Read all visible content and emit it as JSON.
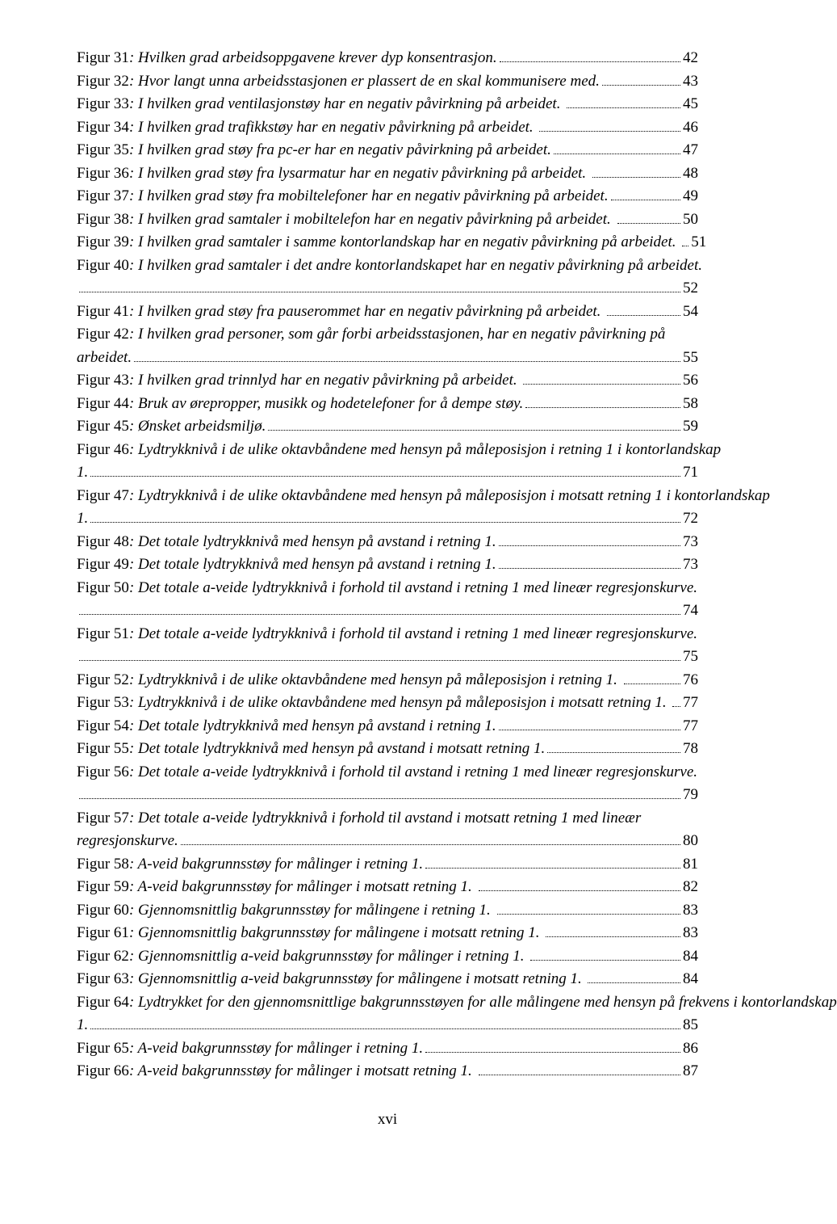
{
  "footer": "xvi",
  "entries": [
    {
      "prefix": "Figur 31",
      "title": ": Hvilken grad arbeidsoppgavene krever dyp konsentrasjon.",
      "page": "42",
      "wrap": false,
      "orphan": false
    },
    {
      "prefix": "Figur 32",
      "title": ": Hvor langt unna arbeidsstasjonen er plassert de en skal kommunisere med.",
      "page": "43",
      "wrap": false,
      "orphan": false
    },
    {
      "prefix": "Figur 33",
      "title": ": I hvilken grad ventilasjonstøy har en negativ påvirkning på arbeidet. ",
      "page": "45",
      "wrap": false,
      "orphan": false
    },
    {
      "prefix": "Figur 34",
      "title": ": I hvilken grad trafikkstøy har en negativ påvirkning på arbeidet. ",
      "page": "46",
      "wrap": false,
      "orphan": false
    },
    {
      "prefix": "Figur 35",
      "title": ": I hvilken grad støy fra pc-er har en negativ påvirkning på arbeidet.",
      "page": "47",
      "wrap": false,
      "orphan": false
    },
    {
      "prefix": "Figur 36",
      "title": ": I hvilken grad støy fra lysarmatur har en negativ påvirkning på arbeidet. ",
      "page": "48",
      "wrap": false,
      "orphan": false
    },
    {
      "prefix": "Figur 37",
      "title": ": I hvilken grad støy fra mobiltelefoner har en negativ påvirkning på arbeidet.",
      "page": "49",
      "wrap": false,
      "orphan": false
    },
    {
      "prefix": "Figur 38",
      "title": ": I hvilken grad samtaler i mobiltelefon har en negativ påvirkning på arbeidet. ",
      "page": "50",
      "wrap": false,
      "orphan": false
    },
    {
      "prefix": "Figur 39",
      "title": ": I hvilken grad samtaler i samme kontorlandskap har en negativ påvirkning på arbeidet. ",
      "page": "51",
      "wrap": false,
      "orphan": false
    },
    {
      "prefix": "Figur 40",
      "title": ": I hvilken grad samtaler i det andre kontorlandskapet har en negativ påvirkning på arbeidet.",
      "page": "52",
      "wrap": false,
      "orphan": true
    },
    {
      "prefix": "Figur 41",
      "title": ": I hvilken grad støy fra pauserommet har en negativ påvirkning på arbeidet. ",
      "page": "54",
      "wrap": false,
      "orphan": false
    },
    {
      "prefix": "Figur 42",
      "title": ": I hvilken grad personer, som går forbi arbeidsstasjonen, har en negativ påvirkning på arbeidet.",
      "page": "55",
      "wrap": true,
      "orphan": false
    },
    {
      "prefix": "Figur 43",
      "title": ": I hvilken grad trinnlyd har en negativ påvirkning på arbeidet. ",
      "page": "56",
      "wrap": false,
      "orphan": false
    },
    {
      "prefix": "Figur 44",
      "title": ": Bruk av ørepropper, musikk og hodetelefoner for å dempe støy.",
      "page": "58",
      "wrap": false,
      "orphan": false
    },
    {
      "prefix": "Figur 45",
      "title": ": Ønsket arbeidsmiljø.",
      "page": "59",
      "wrap": false,
      "orphan": false
    },
    {
      "prefix": "Figur 46",
      "title": ": Lydtrykknivå i de ulike oktavbåndene med hensyn på måleposisjon i retning 1 i kontorlandskap 1. ",
      "page": "71",
      "wrap": true,
      "orphan": false
    },
    {
      "prefix": "Figur 47",
      "title": ": Lydtrykknivå i de ulike oktavbåndene med hensyn på måleposisjon i motsatt retning 1 i kontorlandskap 1. ",
      "page": "72",
      "wrap": true,
      "orphan": false
    },
    {
      "prefix": "Figur 48",
      "title": ": Det totale lydtrykknivå med hensyn på avstand i retning 1.",
      "page": "73",
      "wrap": false,
      "orphan": false
    },
    {
      "prefix": "Figur 49",
      "title": ": Det totale lydtrykknivå med hensyn på avstand i retning 1.",
      "page": "73",
      "wrap": false,
      "orphan": false
    },
    {
      "prefix": "Figur 50",
      "title": ": Det totale a-veide lydtrykknivå i forhold til avstand i retning 1 med lineær regresjonskurve.",
      "page": "74",
      "wrap": false,
      "orphan": true
    },
    {
      "prefix": "Figur 51",
      "title": ": Det totale a-veide lydtrykknivå i forhold til avstand i retning 1 med lineær regresjonskurve.",
      "page": "75",
      "wrap": false,
      "orphan": true
    },
    {
      "prefix": "Figur 52",
      "title": ": Lydtrykknivå i de ulike oktavbåndene med hensyn på måleposisjon i retning 1. ",
      "page": "76",
      "wrap": false,
      "orphan": false
    },
    {
      "prefix": "Figur 53",
      "title": ": Lydtrykknivå i de ulike oktavbåndene med hensyn på måleposisjon i motsatt retning 1. ",
      "page": "77",
      "wrap": false,
      "orphan": false
    },
    {
      "prefix": "Figur 54",
      "title": ": Det totale lydtrykknivå med hensyn på avstand i retning 1.",
      "page": "77",
      "wrap": false,
      "orphan": false
    },
    {
      "prefix": "Figur 55",
      "title": ": Det totale lydtrykknivå med hensyn på avstand i motsatt retning 1.",
      "page": "78",
      "wrap": false,
      "orphan": false
    },
    {
      "prefix": "Figur 56",
      "title": ": Det totale a-veide lydtrykknivå i forhold til avstand i retning 1 med lineær regresjonskurve.",
      "page": "79",
      "wrap": false,
      "orphan": true
    },
    {
      "prefix": "Figur 57",
      "title": ": Det totale a-veide lydtrykknivå i forhold til avstand i motsatt retning 1 med lineær regresjonskurve. ",
      "page": "80",
      "wrap": true,
      "orphan": false
    },
    {
      "prefix": "Figur 58",
      "title": ": A-veid bakgrunnsstøy for målinger i retning 1.",
      "page": "81",
      "wrap": false,
      "orphan": false
    },
    {
      "prefix": "Figur 59",
      "title": ": A-veid bakgrunnsstøy for målinger i motsatt retning 1. ",
      "page": "82",
      "wrap": false,
      "orphan": false
    },
    {
      "prefix": "Figur 60",
      "title": ": Gjennomsnittlig bakgrunnsstøy for målingene i retning 1. ",
      "page": "83",
      "wrap": false,
      "orphan": false
    },
    {
      "prefix": "Figur 61",
      "title": ": Gjennomsnittlig bakgrunnsstøy for målingene i motsatt retning 1. ",
      "page": "83",
      "wrap": false,
      "orphan": false
    },
    {
      "prefix": "Figur 62",
      "title": ": Gjennomsnittlig a-veid bakgrunnsstøy for målinger i retning 1. ",
      "page": "84",
      "wrap": false,
      "orphan": false
    },
    {
      "prefix": "Figur 63",
      "title": ": Gjennomsnittlig a-veid bakgrunnsstøy for målingene i motsatt retning 1. ",
      "page": "84",
      "wrap": false,
      "orphan": false
    },
    {
      "prefix": "Figur 64",
      "title": ": Lydtrykket for den gjennomsnittlige bakgrunnsstøyen for alle målingene med hensyn på frekvens i kontorlandskap 1. ",
      "page": "85",
      "wrap": true,
      "orphan": false
    },
    {
      "prefix": "Figur 65",
      "title": ": A-veid bakgrunnsstøy for målinger i retning 1.",
      "page": "86",
      "wrap": false,
      "orphan": false
    },
    {
      "prefix": "Figur 66",
      "title": ": A-veid bakgrunnsstøy for målinger i motsatt retning 1. ",
      "page": "87",
      "wrap": false,
      "orphan": false
    }
  ]
}
